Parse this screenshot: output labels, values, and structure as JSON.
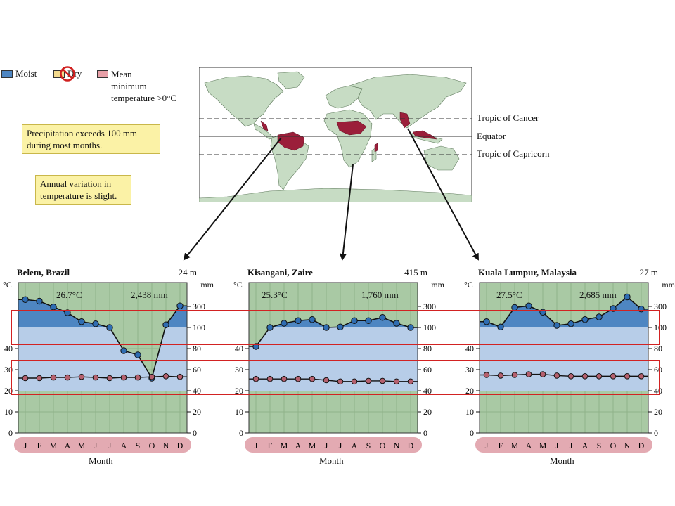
{
  "legend": {
    "moist": "Moist",
    "dry": "Dry",
    "mean_min_1": "Mean",
    "mean_min_2": "minimum",
    "mean_min_3": "temperature >0°C"
  },
  "notes": {
    "precip_1": "Precipitation exceeds 100 mm",
    "precip_2": "during most months.",
    "temp_1": "Annual variation in",
    "temp_2": "temperature is slight."
  },
  "map": {
    "tropic_cancer": "Tropic of Cancer",
    "equator": "Equator",
    "tropic_capricorn": "Tropic of Capricorn"
  },
  "colors": {
    "moist_dark": "#4e86c2",
    "moist_light": "#b7cde8",
    "dry": "#f2d98c",
    "mean_min": "#b5606e",
    "chart_bg": "#a9c9a4",
    "ocean": "#ffffff",
    "land": "#c7dcc4",
    "rainforest": "#9b1f3a",
    "highlight_box": "#d22222"
  },
  "chart_data": [
    {
      "type": "line",
      "title": "Belem, Brazil",
      "elevation": "24 m",
      "ylabel_left": "°C",
      "ylabel_right": "mm",
      "xlabel": "Month",
      "annotation_temp": "26.7°C",
      "annotation_precip": "2,438 mm",
      "categories": [
        "J",
        "F",
        "M",
        "A",
        "M",
        "J",
        "J",
        "A",
        "S",
        "O",
        "N",
        "D"
      ],
      "left_ticks": [
        "0",
        "10",
        "20",
        "30",
        "40"
      ],
      "right_ticks": [
        "0",
        "20",
        "40",
        "60",
        "80",
        "100",
        "300"
      ],
      "series": [
        {
          "name": "temperature",
          "unit": "°C",
          "values": [
            26,
            26,
            26.3,
            26.3,
            26.6,
            26.3,
            26,
            26.3,
            26.3,
            26.6,
            26.9,
            26.6
          ]
        },
        {
          "name": "precipitation",
          "unit": "mm",
          "values": [
            365,
            350,
            295,
            240,
            155,
            135,
            100,
            78,
            74,
            52,
            125,
            305
          ]
        }
      ]
    },
    {
      "type": "line",
      "title": "Kisangani, Zaire",
      "elevation": "415 m",
      "ylabel_left": "°C",
      "ylabel_right": "mm",
      "xlabel": "Month",
      "annotation_temp": "25.3°C",
      "annotation_precip": "1,760 mm",
      "categories": [
        "J",
        "F",
        "M",
        "A",
        "M",
        "J",
        "J",
        "A",
        "S",
        "O",
        "N",
        "D"
      ],
      "left_ticks": [
        "0",
        "10",
        "20",
        "30",
        "40"
      ],
      "right_ticks": [
        "0",
        "20",
        "40",
        "60",
        "80",
        "100",
        "300"
      ],
      "series": [
        {
          "name": "temperature",
          "unit": "°C",
          "values": [
            25.6,
            25.6,
            25.6,
            25.6,
            25.6,
            25,
            24.4,
            24.4,
            24.7,
            24.7,
            24.4,
            24.4
          ]
        },
        {
          "name": "precipitation",
          "unit": "mm",
          "values": [
            82,
            100,
            140,
            165,
            175,
            100,
            105,
            165,
            165,
            195,
            140,
            100
          ]
        }
      ]
    },
    {
      "type": "line",
      "title": "Kuala Lumpur, Malaysia",
      "elevation": "27 m",
      "ylabel_left": "°C",
      "ylabel_right": "mm",
      "xlabel": "Month",
      "annotation_temp": "27.5°C",
      "annotation_precip": "2,685 mm",
      "categories": [
        "J",
        "F",
        "M",
        "A",
        "M",
        "J",
        "J",
        "A",
        "S",
        "O",
        "N",
        "D"
      ],
      "left_ticks": [
        "0",
        "10",
        "20",
        "30",
        "40"
      ],
      "right_ticks": [
        "0",
        "20",
        "40",
        "60",
        "80",
        "100",
        "300"
      ],
      "series": [
        {
          "name": "temperature",
          "unit": "°C",
          "values": [
            27.5,
            27.2,
            27.5,
            27.8,
            27.8,
            27.2,
            26.9,
            26.9,
            26.9,
            26.9,
            26.9,
            26.9
          ]
        },
        {
          "name": "precipitation",
          "unit": "mm",
          "values": [
            155,
            105,
            290,
            305,
            245,
            120,
            135,
            175,
            200,
            280,
            390,
            275
          ]
        }
      ]
    }
  ]
}
